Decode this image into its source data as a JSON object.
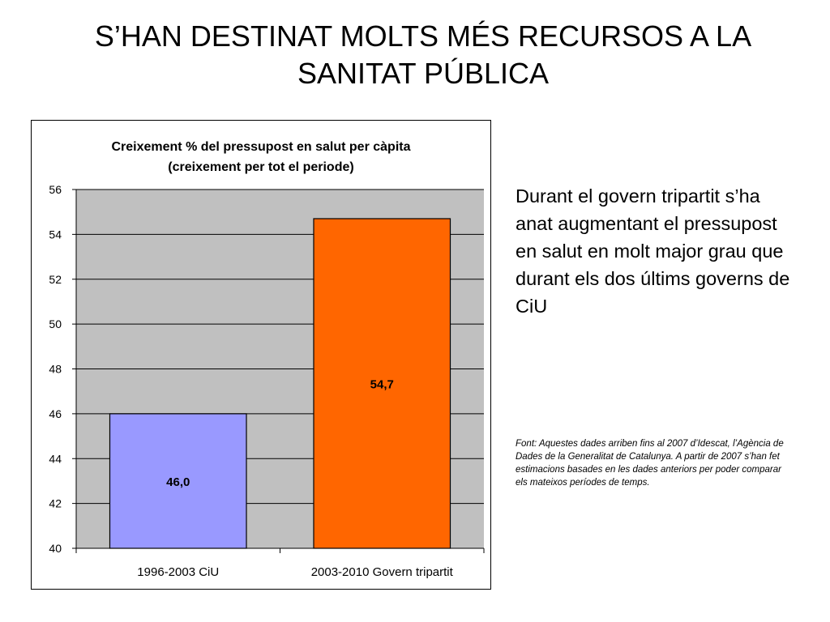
{
  "slide": {
    "title": "S’HAN DESTINAT MOLTS MÉS RECURSOS A LA SANITAT PÚBLICA",
    "side_text": "Durant el govern tripartit s’ha anat augmentant el pressupost en salut en molt major grau que durant els dos últims governs de CiU",
    "source_note": "Font: Aquestes dades arriben fins al 2007 d’Idescat, l’Agència de Dades de la Generalitat de Catalunya. A partir de 2007 s’han fet estimacions basades en les dades anteriors per poder comparar els mateixos períodes de temps."
  },
  "chart_data": {
    "type": "bar",
    "title": "Creixement % del pressupost en salut per càpita",
    "subtitle": "(creixement per tot el periode)",
    "categories": [
      "1996-2003 CiU",
      "2003-2010 Govern tripartit"
    ],
    "values": [
      46.0,
      54.7
    ],
    "data_labels": [
      "46,0",
      "54,7"
    ],
    "bar_colors": [
      "#9999ff",
      "#ff6600"
    ],
    "plot_background": "#c0c0c0",
    "ylim": [
      40,
      56
    ],
    "yticks": [
      40,
      42,
      44,
      46,
      48,
      50,
      52,
      54,
      56
    ],
    "grid": true,
    "legend": "none"
  }
}
